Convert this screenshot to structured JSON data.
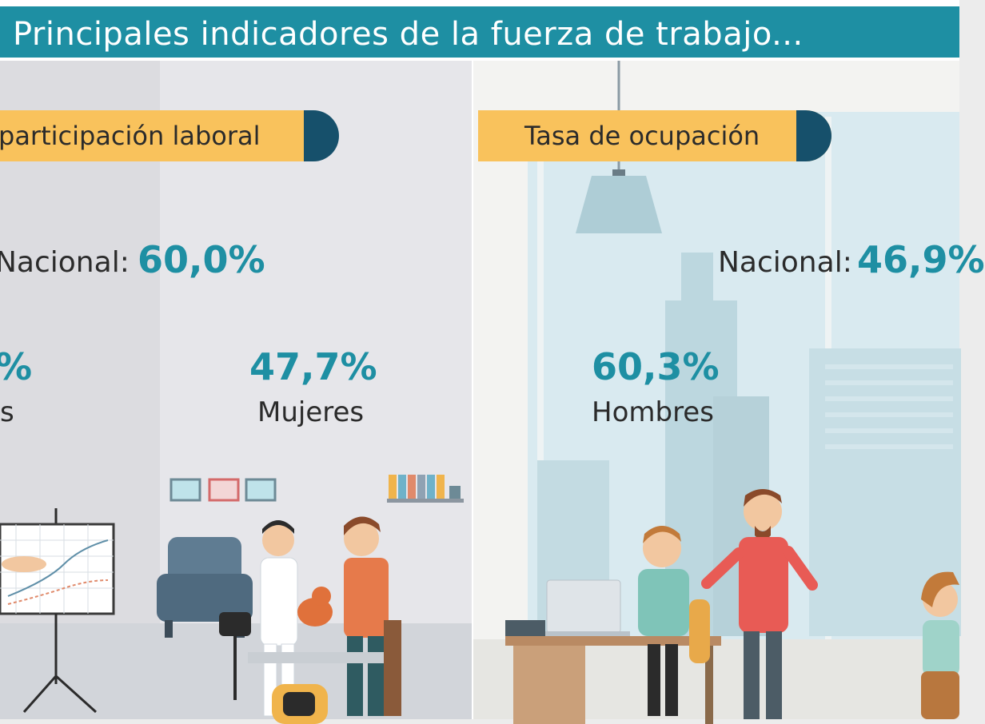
{
  "header": {
    "title": "Principales indicadores de la fuerza de trabajo..."
  },
  "left_panel": {
    "pill_label": "participación laboral",
    "national_label": "Nacional:",
    "national_value": "60,0%",
    "men_value_fragment": "%",
    "men_label_fragment": "s",
    "women_value": "47,7%",
    "women_label": "Mujeres"
  },
  "right_panel": {
    "pill_label": "Tasa de ocupación",
    "national_label": "Nacional:",
    "national_value": "46,9%",
    "men_value": "60,3%",
    "men_label": "Hombres"
  },
  "colors": {
    "accent": "#1e8fa3",
    "pill": "#f9c25c",
    "pill_end": "#16506b",
    "text": "#2b2b2b"
  }
}
